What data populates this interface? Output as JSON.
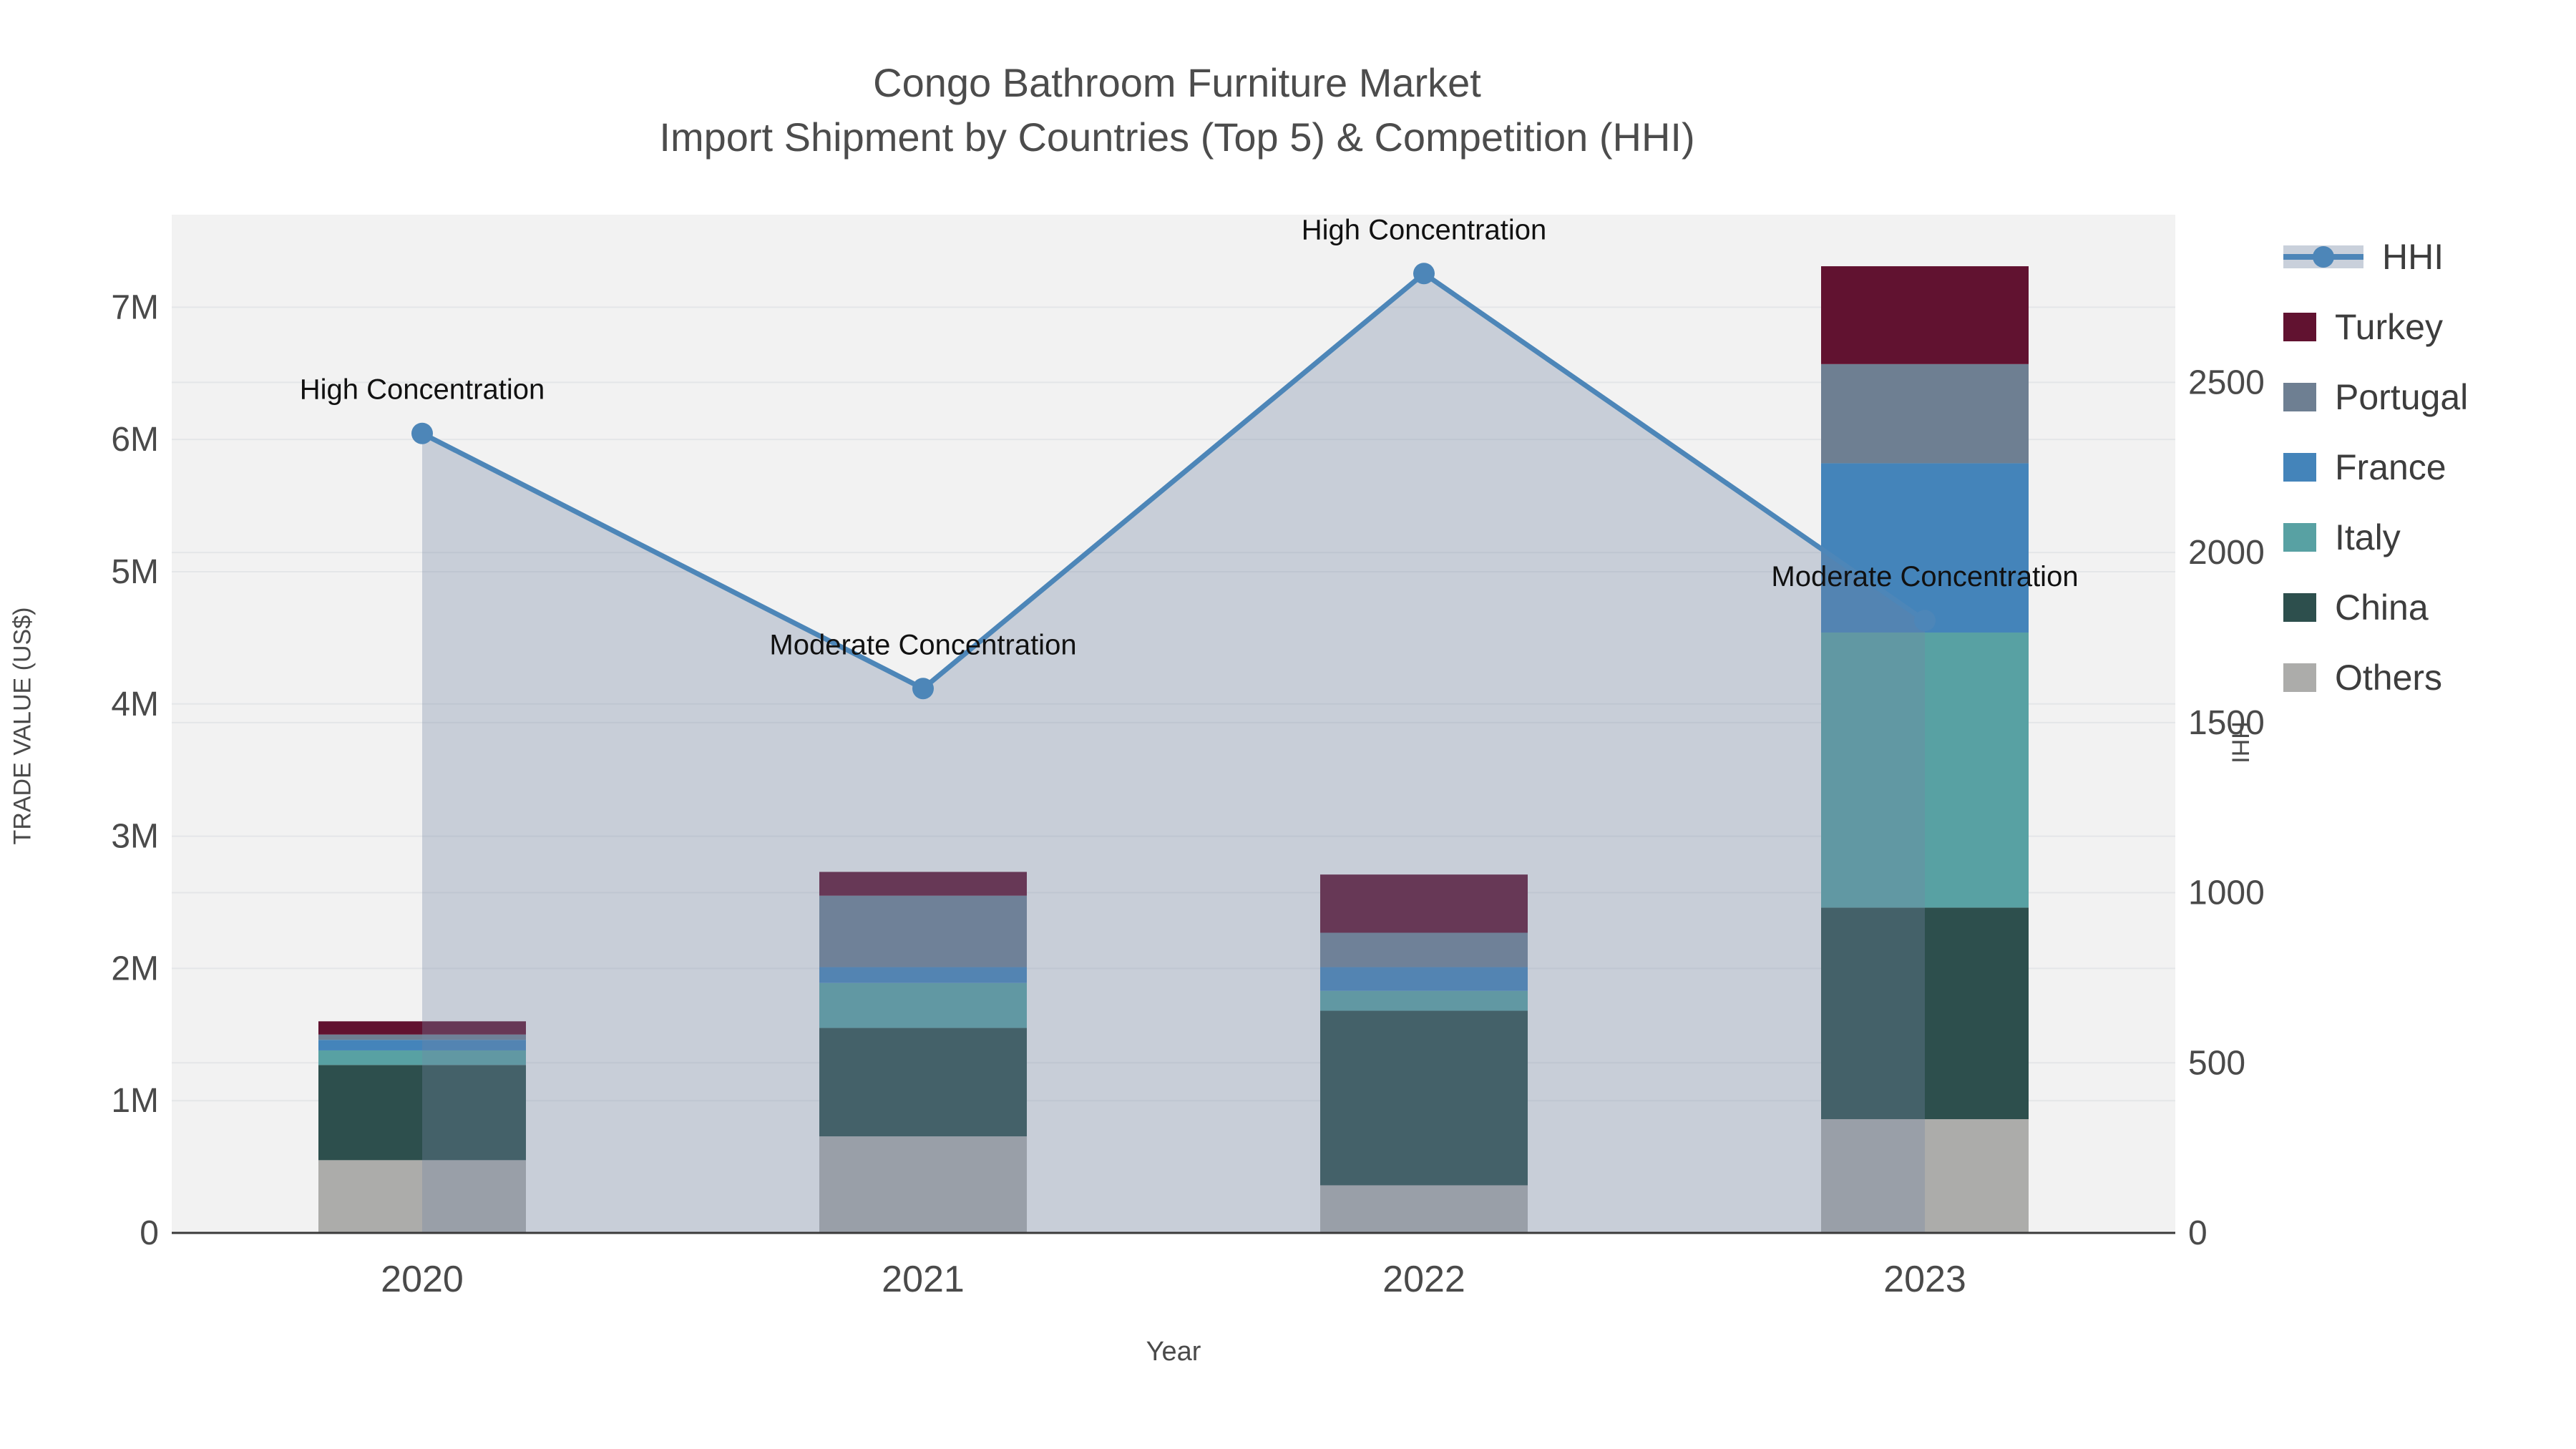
{
  "title": {
    "line1": "Congo Bathroom Furniture Market",
    "line2": "Import Shipment by Countries (Top 5) & Competition (HHI)"
  },
  "axes": {
    "xlabel": "Year",
    "ylabel": "TRADE VALUE (US$)",
    "y2label": "HHI"
  },
  "legend": {
    "items": [
      {
        "label": "HHI",
        "type": "line",
        "color": "#4d86b8"
      },
      {
        "label": "Turkey",
        "type": "box",
        "color": "#611230"
      },
      {
        "label": "Portugal",
        "type": "box",
        "color": "#6e7f92"
      },
      {
        "label": "France",
        "type": "box",
        "color": "#4484ba"
      },
      {
        "label": "Italy",
        "type": "box",
        "color": "#58a1a3"
      },
      {
        "label": "China",
        "type": "box",
        "color": "#2d4f4d"
      },
      {
        "label": "Others",
        "type": "box",
        "color": "#acacaa"
      }
    ]
  },
  "chart_data": {
    "type": "bar+line",
    "title": "Congo Bathroom Furniture Market — Import Shipment by Countries (Top 5) & Competition (HHI)",
    "categories": [
      "2020",
      "2021",
      "2022",
      "2023"
    ],
    "bar_unit": "millions US$",
    "series": [
      {
        "name": "Others",
        "color": "#acacaa",
        "values": [
          0.55,
          0.73,
          0.36,
          0.86
        ]
      },
      {
        "name": "China",
        "color": "#2d4f4d",
        "values": [
          0.72,
          0.82,
          1.32,
          1.6
        ]
      },
      {
        "name": "Italy",
        "color": "#58a1a3",
        "values": [
          0.11,
          0.34,
          0.15,
          2.08
        ]
      },
      {
        "name": "France",
        "color": "#4484ba",
        "values": [
          0.08,
          0.12,
          0.18,
          1.28
        ]
      },
      {
        "name": "Portugal",
        "color": "#6e7f92",
        "values": [
          0.04,
          0.54,
          0.26,
          0.75
        ]
      },
      {
        "name": "Turkey",
        "color": "#611230",
        "values": [
          0.1,
          0.18,
          0.44,
          0.74
        ]
      }
    ],
    "bar_totals": [
      1.6,
      2.73,
      2.71,
      7.31
    ],
    "line": {
      "name": "HHI",
      "color": "#4d86b8",
      "fill": "rgba(116,134,165,0.33)",
      "values": [
        2350,
        1600,
        2820,
        1800
      ]
    },
    "annotations": [
      {
        "x": "2020",
        "text": "High Concentration"
      },
      {
        "x": "2021",
        "text": "Moderate Concentration"
      },
      {
        "x": "2022",
        "text": "High Concentration"
      },
      {
        "x": "2023",
        "text": "Moderate Concentration"
      }
    ],
    "xlabel": "Year",
    "ylabel": "TRADE VALUE (US$)",
    "y2label": "HHI",
    "yticks": [
      {
        "v": 0,
        "label": "0"
      },
      {
        "v": 1,
        "label": "1M"
      },
      {
        "v": 2,
        "label": "2M"
      },
      {
        "v": 3,
        "label": "3M"
      },
      {
        "v": 4,
        "label": "4M"
      },
      {
        "v": 5,
        "label": "5M"
      },
      {
        "v": 6,
        "label": "6M"
      },
      {
        "v": 7,
        "label": "7M"
      }
    ],
    "y2ticks": [
      {
        "v": 0,
        "label": "0"
      },
      {
        "v": 500,
        "label": "500"
      },
      {
        "v": 1000,
        "label": "1000"
      },
      {
        "v": 1500,
        "label": "1500"
      },
      {
        "v": 2000,
        "label": "2000"
      },
      {
        "v": 2500,
        "label": "2500"
      }
    ],
    "ylim": [
      0,
      7.7
    ],
    "y2lim": [
      0,
      2993
    ],
    "grid": true,
    "legend_position": "right",
    "colors": {
      "plot_bg": "#f2f2f2",
      "grid": "#e4e6e8",
      "axis_line": "#3a3a3a",
      "tick_text": "#4a4a4a",
      "annotation_text": "#111111"
    }
  }
}
